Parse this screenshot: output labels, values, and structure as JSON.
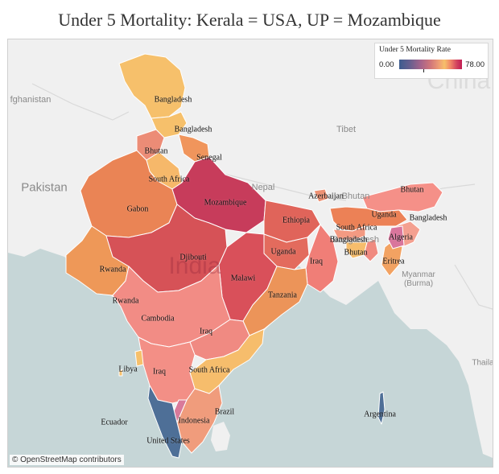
{
  "title": "Under 5 Mortality: Kerala = USA, UP = Mozambique",
  "legend": {
    "title": "Under 5 Mortality Rate",
    "min": "0.00",
    "max": "78.00"
  },
  "attribution": "© OpenStreetMap contributors",
  "basemap_labels": {
    "china": "China",
    "afghanistan": "fghanistan",
    "pakistan": "Pakistan",
    "tibet": "Tibet",
    "nepal": "Nepal",
    "bhutan": "Bhutan",
    "bangladesh": "Bangladesh",
    "india": "India",
    "myanmar": "Myanmar\n(Burma)",
    "thailand": "Thaila"
  },
  "colors": {
    "ocean": "#c6d6d7",
    "land": "#f0f0f0",
    "border": "#ffffff"
  },
  "regions": [
    {
      "label": "Bangladesh",
      "color": "#f6c06b"
    },
    {
      "label": "Bangladesh",
      "color": "#f6c06b"
    },
    {
      "label": "Bhutan",
      "color": "#ec8c76"
    },
    {
      "label": "Senegal",
      "color": "#f0955c"
    },
    {
      "label": "South Africa",
      "color": "#f6b86a"
    },
    {
      "label": "Gabon",
      "color": "#ea8455"
    },
    {
      "label": "Mozambique",
      "color": "#c73c5b"
    },
    {
      "label": "Ethiopia",
      "color": "#e0645a"
    },
    {
      "label": "Rwanda",
      "color": "#ee9858"
    },
    {
      "label": "Djibouti",
      "color": "#d65257"
    },
    {
      "label": "Uganda",
      "color": "#e36b5d"
    },
    {
      "label": "Iraq",
      "color": "#f07e77"
    },
    {
      "label": "Malawi",
      "color": "#d9505a"
    },
    {
      "label": "Rwanda",
      "color": "#f39a82"
    },
    {
      "label": "Cambodia",
      "color": "#f28c85"
    },
    {
      "label": "Tanzania",
      "color": "#ec9459"
    },
    {
      "label": "Iraq",
      "color": "#f08a82"
    },
    {
      "label": "South Africa",
      "color": "#f6bd6c"
    },
    {
      "label": "Iraq",
      "color": "#f38f86"
    },
    {
      "label": "Brazil",
      "color": "#f09c7c"
    },
    {
      "label": "Indonesia",
      "color": "#d97a9a"
    },
    {
      "label": "United States",
      "color": "#4e6f97"
    },
    {
      "label": "Azerbaijan",
      "color": "#ee9173"
    },
    {
      "label": "Bhutan",
      "color": "#f59088"
    },
    {
      "label": "Uganda",
      "color": "#ec8156"
    },
    {
      "label": "Bangladesh",
      "color": "#f39a82"
    },
    {
      "label": "South Africa",
      "color": "#f6bd6c"
    },
    {
      "label": "Bangladesh",
      "color": "#f4a090"
    },
    {
      "label": "Algeria",
      "color": "#d9759c"
    },
    {
      "label": "Bhutan",
      "color": "#f08a80"
    },
    {
      "label": "Eritrea",
      "color": "#f2a262"
    },
    {
      "label": "Libya",
      "color": "#f6c06b"
    },
    {
      "label": "Ecuador",
      "color": "#f6c06b"
    },
    {
      "label": "Argentina",
      "color": "#4e6f97"
    }
  ]
}
